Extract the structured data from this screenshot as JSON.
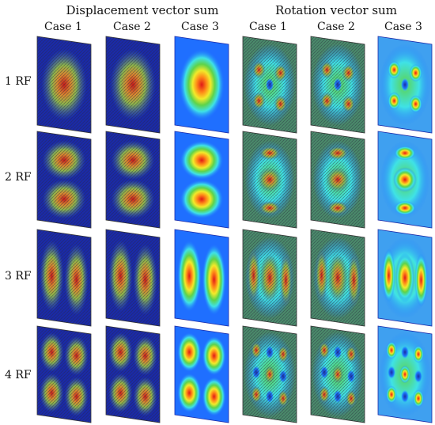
{
  "headers": {
    "group_left": "Displacement vector sum",
    "group_right": "Rotation vector sum",
    "cases": [
      "Case 1",
      "Case 2",
      "Case 3",
      "Case 1",
      "Case 2",
      "Case 3"
    ]
  },
  "rows": [
    "1 RF",
    "2 RF",
    "3 RF",
    "4 RF"
  ],
  "colors": {
    "low": "#1a2aa8",
    "mid_blue": "#1f7fff",
    "cyan": "#3fe2e6",
    "green": "#5ed34a",
    "yellow": "#f2ea2a",
    "orange": "#ff8a18",
    "high": "#e01818",
    "mesh_line": "#2a2a40"
  }
}
